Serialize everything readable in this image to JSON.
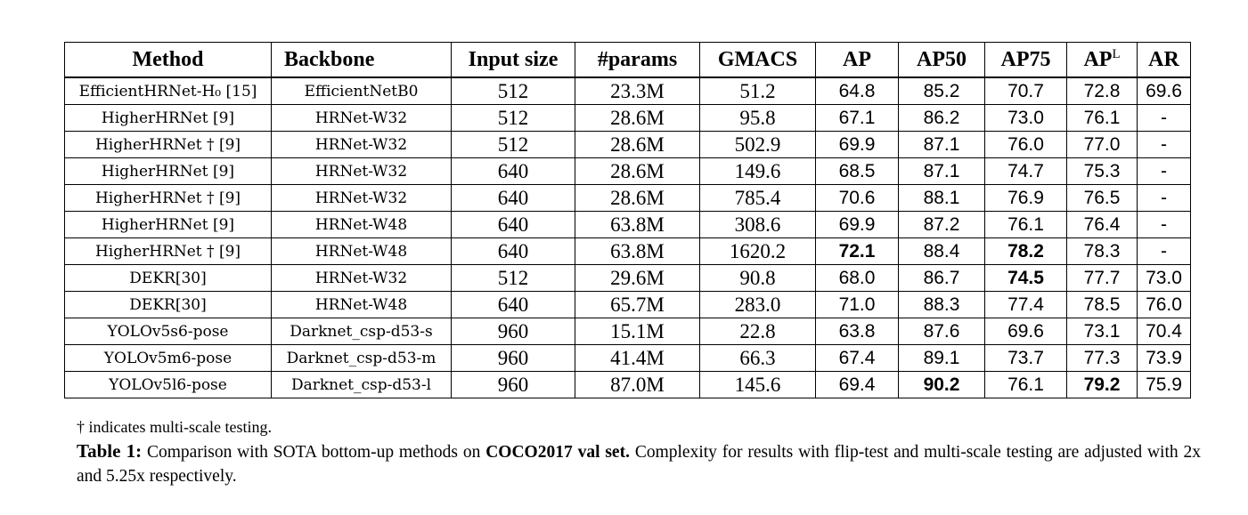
{
  "table": {
    "headers": {
      "method": "Method",
      "backbone": "Backbone",
      "input_size": "Input size",
      "params": "#params",
      "gmacs": "GMACS",
      "ap": "AP",
      "ap50": "AP50",
      "ap75": "AP75",
      "apl_base": "AP",
      "apl_sup": "L",
      "ar": "AR"
    },
    "rows": [
      {
        "method": "EfficientHRNet-H₀ [15]",
        "backbone": "EfficientNetB0",
        "input_size": "512",
        "params": "23.3M",
        "gmacs": "51.2",
        "ap": "64.8",
        "ap50": "85.2",
        "ap75": "70.7",
        "apl": "72.8",
        "ar": "69.6"
      },
      {
        "method": "HigherHRNet [9]",
        "backbone": "HRNet-W32",
        "input_size": "512",
        "params": "28.6M",
        "gmacs": "95.8",
        "ap": "67.1",
        "ap50": "86.2",
        "ap75": "73.0",
        "apl": "76.1",
        "ar": "-"
      },
      {
        "method": "HigherHRNet † [9]",
        "backbone": "HRNet-W32",
        "input_size": "512",
        "params": "28.6M",
        "gmacs": "502.9",
        "ap": "69.9",
        "ap50": "87.1",
        "ap75": "76.0",
        "apl": "77.0",
        "ar": "-"
      },
      {
        "method": "HigherHRNet  [9]",
        "backbone": "HRNet-W32",
        "input_size": "640",
        "params": "28.6M",
        "gmacs": "149.6",
        "ap": "68.5",
        "ap50": "87.1",
        "ap75": "74.7",
        "apl": "75.3",
        "ar": "-"
      },
      {
        "method": "HigherHRNet † [9]",
        "backbone": "HRNet-W32",
        "input_size": "640",
        "params": "28.6M",
        "gmacs": "785.4",
        "ap": "70.6",
        "ap50": "88.1",
        "ap75": "76.9",
        "apl": "76.5",
        "ar": "-"
      },
      {
        "method": "HigherHRNet  [9]",
        "backbone": "HRNet-W48",
        "input_size": "640",
        "params": "63.8M",
        "gmacs": "308.6",
        "ap": "69.9",
        "ap50": "87.2",
        "ap75": "76.1",
        "apl": "76.4",
        "ar": "-"
      },
      {
        "method": "HigherHRNet † [9]",
        "backbone": "HRNet-W48",
        "input_size": "640",
        "params": "63.8M",
        "gmacs": "1620.2",
        "ap": "72.1",
        "ap50": "88.4",
        "ap75": "78.2",
        "apl": "78.3",
        "ar": "-"
      },
      {
        "method": "DEKR[30]",
        "backbone": "HRNet-W32",
        "input_size": "512",
        "params": "29.6M",
        "gmacs": "90.8",
        "ap": "68.0",
        "ap50": "86.7",
        "ap75": "74.5",
        "apl": "77.7",
        "ar": "73.0"
      },
      {
        "method": "DEKR[30]",
        "backbone": "HRNet-W48",
        "input_size": "640",
        "params": "65.7M",
        "gmacs": "283.0",
        "ap": "71.0",
        "ap50": "88.3",
        "ap75": "77.4",
        "apl": "78.5",
        "ar": "76.0"
      },
      {
        "method": "YOLOv5s6-pose",
        "backbone": "Darknet_csp-d53-s",
        "input_size": "960",
        "params": "15.1M",
        "gmacs": "22.8",
        "ap": "63.8",
        "ap50": "87.6",
        "ap75": "69.6",
        "apl": "73.1",
        "ar": "70.4"
      },
      {
        "method": "YOLOv5m6-pose",
        "backbone": "Darknet_csp-d53-m",
        "input_size": "960",
        "params": "41.4M",
        "gmacs": "66.3",
        "ap": "67.4",
        "ap50": "89.1",
        "ap75": "73.7",
        "apl": "77.3",
        "ar": "73.9"
      },
      {
        "method": "YOLOv5l6-pose",
        "backbone": "Darknet_csp-d53-l",
        "input_size": "960",
        "params": "87.0M",
        "gmacs": "145.6",
        "ap": "69.4",
        "ap50": "90.2",
        "ap75": "76.1",
        "apl": "79.2",
        "ar": "75.9"
      }
    ]
  },
  "footnote": "† indicates multi-scale testing.",
  "caption": {
    "label": "Table 1:",
    "text_before": " Comparison with SOTA bottom-up methods on ",
    "bold_dataset": "COCO2017 val set.",
    "text_after": " Complexity for results with flip-test and multi-scale testing are adjusted with 2x and 5.25x respectively."
  }
}
